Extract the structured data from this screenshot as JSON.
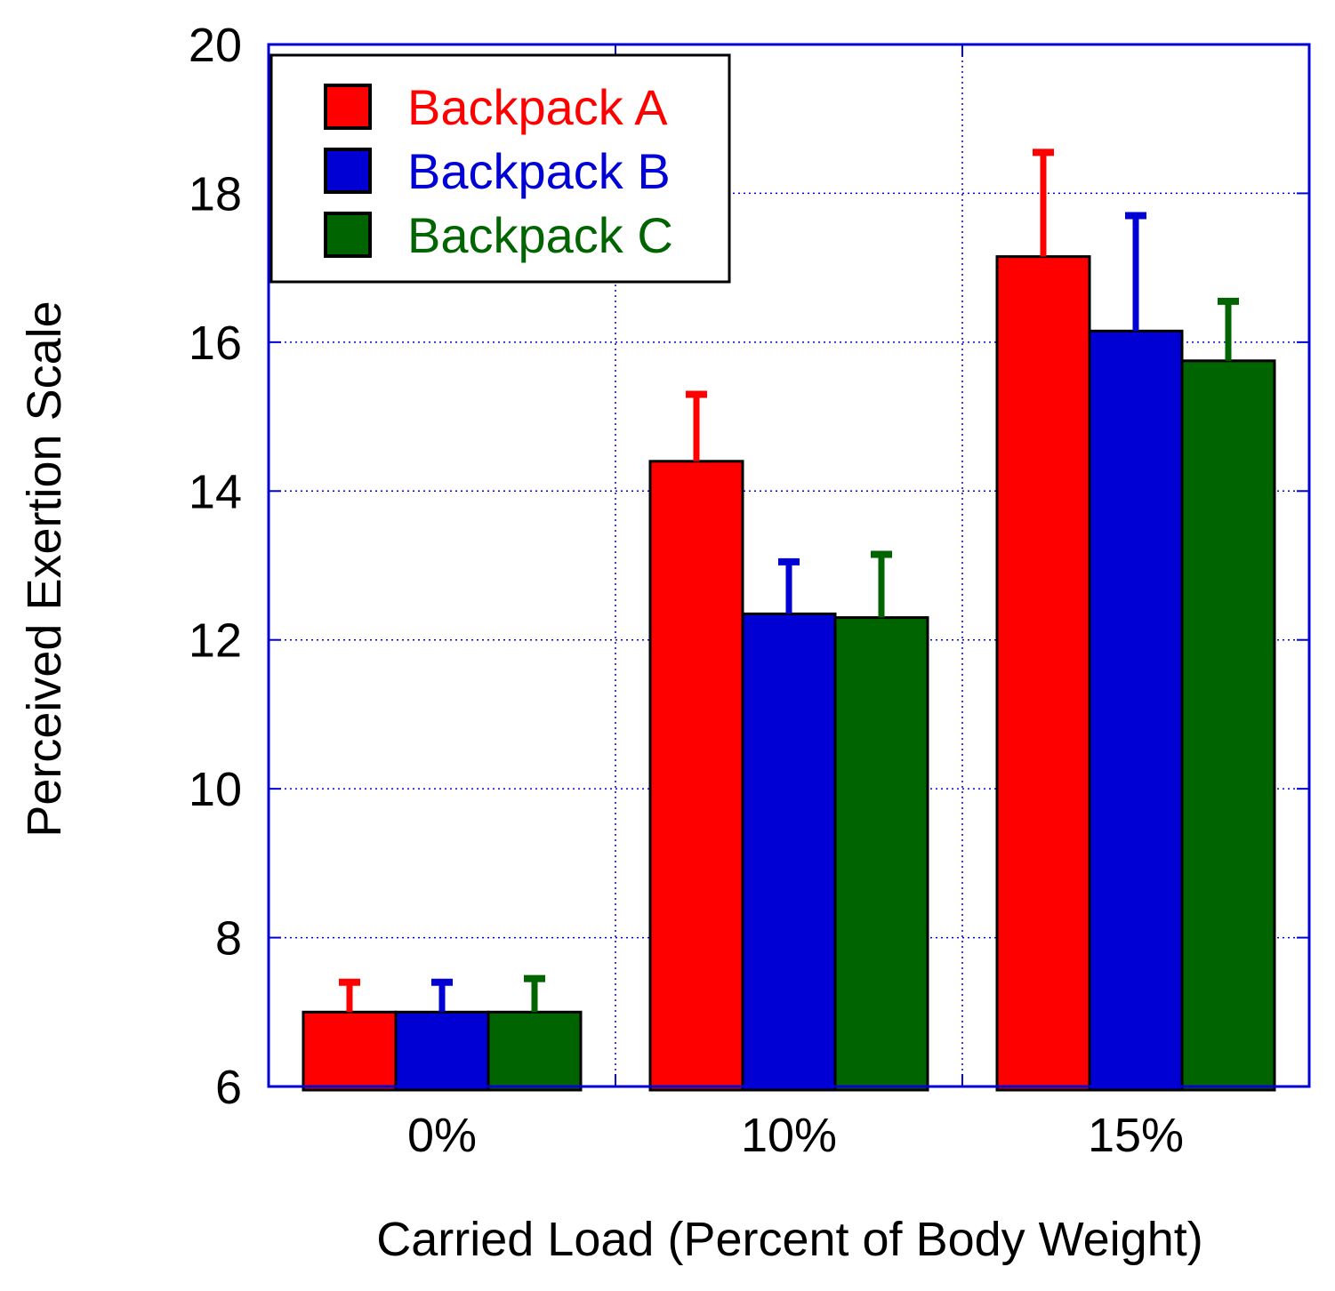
{
  "chart_data": {
    "type": "bar",
    "title": "",
    "xlabel": "Carried Load (Percent of Body Weight)",
    "ylabel": "Perceived Exertion Scale",
    "categories": [
      "0%",
      "10%",
      "15%"
    ],
    "ylim": [
      6,
      20
    ],
    "yticks": [
      6,
      8,
      10,
      12,
      14,
      16,
      18,
      20
    ],
    "ytick_labels": [
      "6",
      "8",
      "10",
      "12",
      "14",
      "16",
      "18",
      "20"
    ],
    "grid": true,
    "legend_position": "top-left",
    "error_bars": "upper",
    "series": [
      {
        "name": "Backpack A",
        "color": "#ff0000",
        "values": [
          7.0,
          14.4,
          17.15
        ],
        "errors": [
          0.4,
          0.9,
          1.4
        ]
      },
      {
        "name": "Backpack B",
        "color": "#0000d4",
        "values": [
          7.0,
          12.35,
          16.15
        ],
        "errors": [
          0.4,
          0.7,
          1.55
        ]
      },
      {
        "name": "Backpack C",
        "color": "#006400",
        "values": [
          7.0,
          12.3,
          15.75
        ],
        "errors": [
          0.45,
          0.85,
          0.8
        ]
      }
    ],
    "colors": {
      "frame": "#0000d4",
      "grid": "#0000d4",
      "bar_outline": "#000000",
      "text": "#000000"
    }
  }
}
